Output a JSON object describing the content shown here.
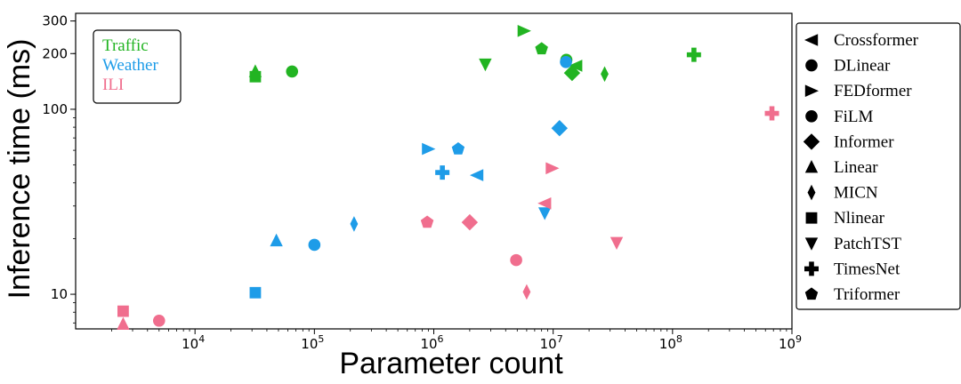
{
  "chart_data": {
    "type": "scatter",
    "xlabel": "Parameter count",
    "ylabel": "Inference time (ms)",
    "xscale": "log",
    "yscale": "log",
    "xlim": [
      1000,
      1000000000
    ],
    "ylim": [
      6.5,
      330
    ],
    "xticks": [
      {
        "value": 10000,
        "base": "10",
        "exp": "4"
      },
      {
        "value": 100000,
        "base": "10",
        "exp": "5"
      },
      {
        "value": 1000000,
        "base": "10",
        "exp": "6"
      },
      {
        "value": 10000000,
        "base": "10",
        "exp": "7"
      },
      {
        "value": 100000000,
        "base": "10",
        "exp": "8"
      },
      {
        "value": 1000000000,
        "base": "10",
        "exp": "9"
      }
    ],
    "yticks": [
      {
        "value": 10,
        "label": "10"
      },
      {
        "value": 100,
        "label": "100"
      },
      {
        "value": 200,
        "label": "200"
      },
      {
        "value": 300,
        "label": "300"
      }
    ],
    "datasets": [
      {
        "name": "Traffic",
        "color": "#22b422"
      },
      {
        "name": "Weather",
        "color": "#1e9ce8"
      },
      {
        "name": "ILI",
        "color": "#f06e8e"
      }
    ],
    "models": [
      {
        "name": "Crossformer",
        "marker": "triangle-left"
      },
      {
        "name": "DLinear",
        "marker": "circle"
      },
      {
        "name": "FEDformer",
        "marker": "triangle-right"
      },
      {
        "name": "FiLM",
        "marker": "circle"
      },
      {
        "name": "Informer",
        "marker": "diamond"
      },
      {
        "name": "Linear",
        "marker": "triangle-up"
      },
      {
        "name": "MICN",
        "marker": "thin-diamond"
      },
      {
        "name": "Nlinear",
        "marker": "square"
      },
      {
        "name": "PatchTST",
        "marker": "triangle-down"
      },
      {
        "name": "TimesNet",
        "marker": "plus"
      },
      {
        "name": "Triformer",
        "marker": "pentagon"
      }
    ],
    "points": [
      {
        "dataset": "Traffic",
        "model": "Crossformer",
        "x": 15500000,
        "y": 172
      },
      {
        "dataset": "Traffic",
        "model": "DLinear",
        "x": 65000,
        "y": 160
      },
      {
        "dataset": "Traffic",
        "model": "FEDformer",
        "x": 5700000,
        "y": 265
      },
      {
        "dataset": "Traffic",
        "model": "FiLM",
        "x": 12900000,
        "y": 185
      },
      {
        "dataset": "Traffic",
        "model": "Informer",
        "x": 14400000,
        "y": 157
      },
      {
        "dataset": "Traffic",
        "model": "Linear",
        "x": 32000,
        "y": 160
      },
      {
        "dataset": "Traffic",
        "model": "MICN",
        "x": 27000000,
        "y": 155
      },
      {
        "dataset": "Traffic",
        "model": "Nlinear",
        "x": 32000,
        "y": 150
      },
      {
        "dataset": "Traffic",
        "model": "PatchTST",
        "x": 2700000,
        "y": 175
      },
      {
        "dataset": "Traffic",
        "model": "TimesNet",
        "x": 151000000,
        "y": 197
      },
      {
        "dataset": "Traffic",
        "model": "Triformer",
        "x": 8000000,
        "y": 212
      },
      {
        "dataset": "Weather",
        "model": "Crossformer",
        "x": 2300000,
        "y": 44
      },
      {
        "dataset": "Weather",
        "model": "DLinear",
        "x": 100000,
        "y": 18.5
      },
      {
        "dataset": "Weather",
        "model": "FEDformer",
        "x": 900000,
        "y": 61
      },
      {
        "dataset": "Weather",
        "model": "FiLM",
        "x": 12800000,
        "y": 180
      },
      {
        "dataset": "Weather",
        "model": "Informer",
        "x": 11300000,
        "y": 79
      },
      {
        "dataset": "Weather",
        "model": "Linear",
        "x": 48000,
        "y": 19.5
      },
      {
        "dataset": "Weather",
        "model": "MICN",
        "x": 215000,
        "y": 24
      },
      {
        "dataset": "Weather",
        "model": "Nlinear",
        "x": 32000,
        "y": 10.2
      },
      {
        "dataset": "Weather",
        "model": "PatchTST",
        "x": 8500000,
        "y": 27.5
      },
      {
        "dataset": "Weather",
        "model": "TimesNet",
        "x": 1180000,
        "y": 45.5
      },
      {
        "dataset": "Weather",
        "model": "Triformer",
        "x": 1600000,
        "y": 61
      },
      {
        "dataset": "ILI",
        "model": "Crossformer",
        "x": 8500000,
        "y": 31
      },
      {
        "dataset": "ILI",
        "model": "DLinear",
        "x": 5000,
        "y": 7.2
      },
      {
        "dataset": "ILI",
        "model": "FEDformer",
        "x": 9800000,
        "y": 48
      },
      {
        "dataset": "ILI",
        "model": "FiLM",
        "x": 4900000,
        "y": 15.3
      },
      {
        "dataset": "ILI",
        "model": "Informer",
        "x": 2000000,
        "y": 24.5
      },
      {
        "dataset": "ILI",
        "model": "Linear",
        "x": 2500,
        "y": 6.9
      },
      {
        "dataset": "ILI",
        "model": "MICN",
        "x": 6000000,
        "y": 10.3
      },
      {
        "dataset": "ILI",
        "model": "Nlinear",
        "x": 2500,
        "y": 8.1
      },
      {
        "dataset": "ILI",
        "model": "PatchTST",
        "x": 34000000,
        "y": 19
      },
      {
        "dataset": "ILI",
        "model": "TimesNet",
        "x": 680000000,
        "y": 95
      },
      {
        "dataset": "ILI",
        "model": "Triformer",
        "x": 880000,
        "y": 24.5
      }
    ]
  }
}
